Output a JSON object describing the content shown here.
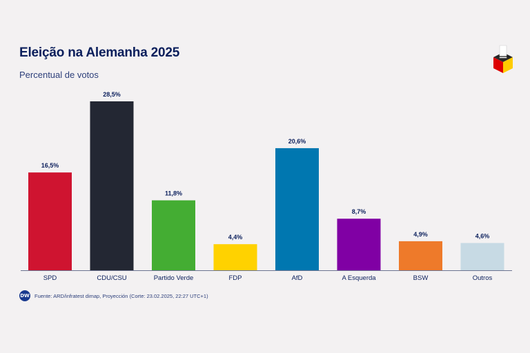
{
  "chart_data": {
    "type": "bar",
    "title": "Eleição na Alemanha 2025",
    "subtitle": "Percentual de votos",
    "categories": [
      "SPD",
      "CDU/CSU",
      "Partido Verde",
      "FDP",
      "AfD",
      "A Esquerda",
      "BSW",
      "Outros"
    ],
    "values": [
      16.5,
      28.5,
      11.8,
      4.4,
      20.6,
      8.7,
      4.9,
      4.6
    ],
    "value_labels": [
      "16,5%",
      "28,5%",
      "11,8%",
      "4,4%",
      "20,6%",
      "8,7%",
      "4,9%",
      "4,6%"
    ],
    "colors": [
      "#cf1430",
      "#232733",
      "#44ad33",
      "#ffd200",
      "#0077b0",
      "#8000a4",
      "#ee7a2a",
      "#c7dae4"
    ],
    "ylim": [
      0,
      28.5
    ],
    "grid": false,
    "xlabel": "",
    "ylabel": ""
  },
  "footer": {
    "badge": "DW",
    "source": "Fuente: ARD/infratest dimap, Proyección (Corte: 23.02.2025, 22:27 UTC+1)"
  },
  "logo": {
    "icon": "ballot-box-icon",
    "colors": [
      "#111111",
      "#dd0000",
      "#ffcc00"
    ]
  }
}
